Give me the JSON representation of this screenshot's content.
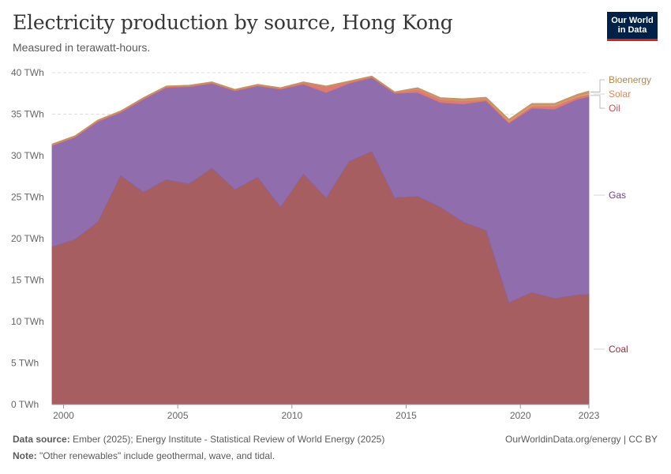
{
  "header": {
    "title": "Electricity production by source, Hong Kong",
    "subtitle": "Measured in terawatt-hours."
  },
  "logo": {
    "line1": "Our World",
    "line2": "in Data"
  },
  "footer": {
    "source_label": "Data source:",
    "source_text": " Ember (2025); Energy Institute - Statistical Review of World Energy (2025)",
    "note_label": "Note:",
    "note_text": " \"Other renewables\" include geothermal, wave, and tidal.",
    "credit": "OurWorldinData.org/energy | CC BY"
  },
  "colors": {
    "coal": "#a25559",
    "gas": "#8a65a8",
    "oil": "#d9746b",
    "solar": "#e6a36a",
    "bioenergy": "#c39262",
    "coal_label": "#883039",
    "gas_label": "#6d3e91",
    "oil_label": "#c4524e",
    "solar_label": "#e0855b",
    "bioenergy_label": "#b5864c"
  },
  "chart_data": {
    "type": "area",
    "stacked": true,
    "title": "Electricity production by source, Hong Kong",
    "subtitle": "Measured in terawatt-hours.",
    "unit": "TWh",
    "ylim": [
      0,
      40
    ],
    "xlim": [
      1999.5,
      2023
    ],
    "y_ticks": [
      0,
      5,
      10,
      15,
      20,
      25,
      30,
      35,
      40
    ],
    "y_tick_labels": [
      "0 TWh",
      "5 TWh",
      "10 TWh",
      "15 TWh",
      "20 TWh",
      "25 TWh",
      "30 TWh",
      "35 TWh",
      "40 TWh"
    ],
    "x_ticks": [
      2000,
      2005,
      2010,
      2015,
      2020,
      2023
    ],
    "x_tick_labels": [
      "2000",
      "2005",
      "2010",
      "2015",
      "2020",
      "2023"
    ],
    "x": [
      1999.5,
      2000.5,
      2001.5,
      2002.5,
      2003.5,
      2004.5,
      2005.5,
      2006.5,
      2007.5,
      2008.5,
      2009.5,
      2010.5,
      2011.5,
      2012.5,
      2013.5,
      2014.5,
      2015.5,
      2016.5,
      2017.5,
      2018.5,
      2019.5,
      2020.5,
      2021.5,
      2022.5,
      2023
    ],
    "series": [
      {
        "name": "Coal",
        "values": [
          19.0,
          19.9,
          22.0,
          27.6,
          25.6,
          27.1,
          26.6,
          28.5,
          25.9,
          27.4,
          23.8,
          27.8,
          24.9,
          29.3,
          30.5,
          24.9,
          25.1,
          23.8,
          22.0,
          21.0,
          12.3,
          13.5,
          12.8,
          13.2,
          13.3
        ]
      },
      {
        "name": "Gas",
        "values": [
          12.2,
          12.3,
          12.1,
          7.6,
          11.2,
          11.1,
          11.7,
          10.2,
          11.9,
          11.0,
          14.2,
          10.8,
          12.7,
          9.4,
          8.9,
          12.6,
          12.5,
          12.6,
          14.2,
          15.6,
          21.6,
          22.2,
          22.8,
          23.6,
          23.8
        ]
      },
      {
        "name": "Oil",
        "values": [
          0.1,
          0.1,
          0.1,
          0.1,
          0.1,
          0.1,
          0.1,
          0.1,
          0.1,
          0.1,
          0.1,
          0.2,
          0.7,
          0.2,
          0.1,
          0.1,
          0.4,
          0.4,
          0.4,
          0.2,
          0.2,
          0.3,
          0.4,
          0.3,
          0.3
        ]
      },
      {
        "name": "Solar",
        "values": [
          0.0,
          0.0,
          0.0,
          0.0,
          0.0,
          0.0,
          0.0,
          0.0,
          0.0,
          0.0,
          0.0,
          0.0,
          0.0,
          0.0,
          0.0,
          0.0,
          0.05,
          0.05,
          0.05,
          0.05,
          0.1,
          0.1,
          0.1,
          0.1,
          0.15
        ]
      },
      {
        "name": "Bioenergy",
        "values": [
          0.1,
          0.1,
          0.1,
          0.1,
          0.1,
          0.1,
          0.1,
          0.1,
          0.1,
          0.1,
          0.1,
          0.1,
          0.1,
          0.1,
          0.1,
          0.1,
          0.15,
          0.15,
          0.2,
          0.2,
          0.2,
          0.2,
          0.2,
          0.2,
          0.25
        ]
      }
    ],
    "legend_labels": [
      "Bioenergy",
      "Solar",
      "Oil",
      "Gas",
      "Coal"
    ]
  }
}
